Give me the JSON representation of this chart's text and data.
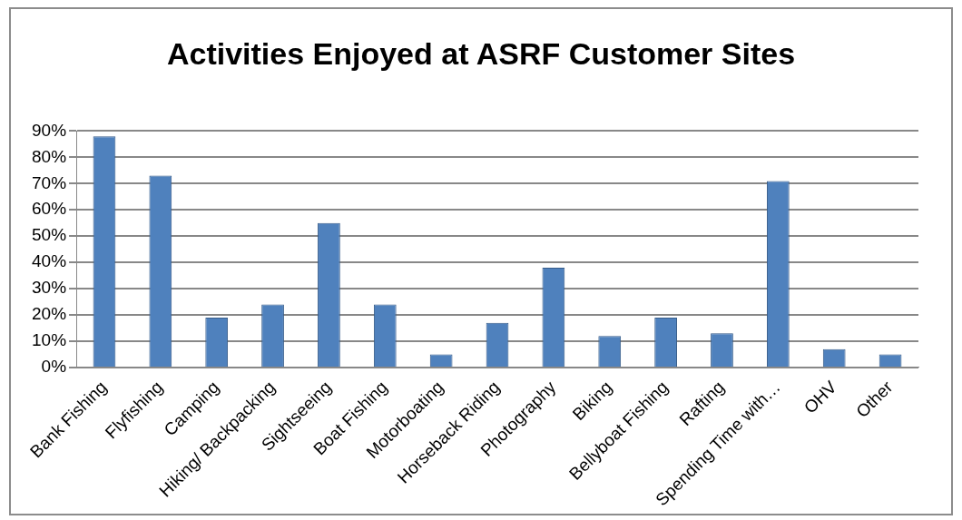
{
  "chart_data": {
    "type": "bar",
    "title": "Activities Enjoyed at ASRF Customer Sites",
    "categories": [
      "Bank Fishing",
      "Flyfishing",
      "Camping",
      "Hiking/ Backpacking",
      "Sightseeing",
      "Boat Fishing",
      "Motorboating",
      "Horseback Riding",
      "Photography",
      "Biking",
      "Bellyboat Fishing",
      "Rafting",
      "Spending Time with…",
      "OHV",
      "Other"
    ],
    "values": [
      88,
      73,
      19,
      24,
      55,
      24,
      5,
      17,
      38,
      12,
      19,
      13,
      71,
      7,
      5
    ],
    "color": "#4f81bd",
    "ylim": [
      0,
      90
    ],
    "yticks": [
      {
        "value": 0,
        "label": "0%"
      },
      {
        "value": 10,
        "label": "10%"
      },
      {
        "value": 20,
        "label": "20%"
      },
      {
        "value": 30,
        "label": "30%"
      },
      {
        "value": 40,
        "label": "40%"
      },
      {
        "value": 50,
        "label": "50%"
      },
      {
        "value": 60,
        "label": "60%"
      },
      {
        "value": 70,
        "label": "70%"
      },
      {
        "value": 80,
        "label": "80%"
      },
      {
        "value": 90,
        "label": "90%"
      }
    ],
    "grid": "y",
    "legend": false
  }
}
